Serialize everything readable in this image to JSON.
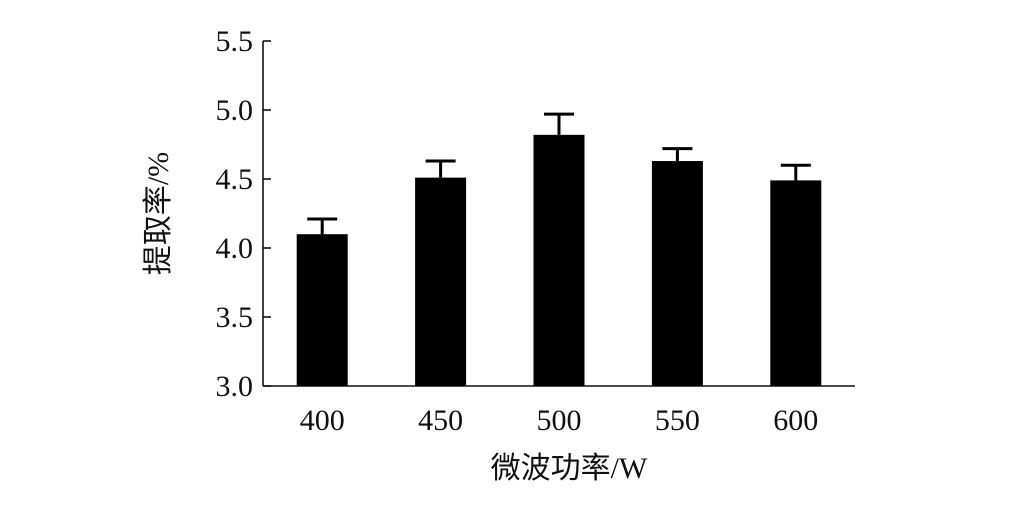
{
  "chart_data": {
    "type": "bar",
    "xlabel": "微波功率/W",
    "ylabel": "提取率/%",
    "categories": [
      "400",
      "450",
      "500",
      "550",
      "600"
    ],
    "values": [
      4.1,
      4.51,
      4.82,
      4.63,
      4.49
    ],
    "error": [
      0.11,
      0.12,
      0.15,
      0.09,
      0.11
    ],
    "ylim": [
      3.0,
      5.5
    ],
    "yticks": [
      "3.0",
      "3.5",
      "4.0",
      "4.5",
      "5.0",
      "5.5"
    ],
    "grid": false,
    "bar_color": "#000000"
  }
}
